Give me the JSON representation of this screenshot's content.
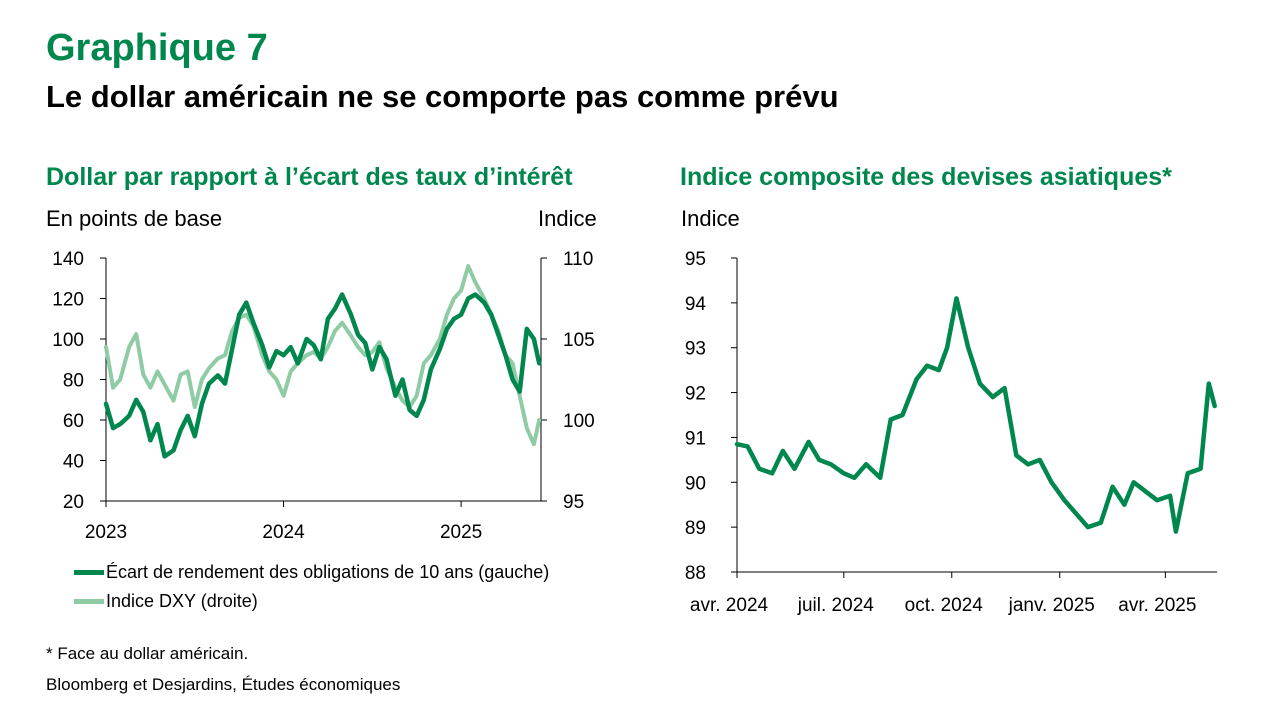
{
  "header": {
    "title": "Graphique 7",
    "subtitle": "Le dollar américain ne se comporte pas comme prévu"
  },
  "left_panel": {
    "title": "Dollar par rapport à l’écart des taux d’intérêt",
    "unit_left": "En points de base",
    "unit_right": "Indice"
  },
  "right_panel": {
    "title": "Indice composite des devises asiatiques*",
    "unit": "Indice"
  },
  "legend": {
    "items": [
      {
        "label": "Écart de rendement des obligations de 10 ans (gauche)",
        "color": "#00874E"
      },
      {
        "label": "Indice DXY (droite)",
        "color": "#8FCBA5"
      }
    ]
  },
  "footnote": "* Face au dollar américain.",
  "source": "Bloomberg et Desjardins, Études économiques",
  "chart_data": [
    {
      "type": "line",
      "title": "Dollar par rapport à l’écart des taux d’intérêt",
      "x_unit": "year (decimal)",
      "xlim": [
        2023.0,
        2025.45
      ],
      "x_ticks": [
        2023,
        2024,
        2025
      ],
      "x_tick_labels": [
        "2023",
        "2024",
        "2025"
      ],
      "y_left": {
        "label": "En points de base",
        "lim": [
          20,
          140
        ],
        "ticks": [
          20,
          40,
          60,
          80,
          100,
          120,
          140
        ]
      },
      "y_right": {
        "label": "Indice",
        "lim": [
          95,
          110
        ],
        "ticks": [
          95,
          100,
          105,
          110
        ]
      },
      "grid": false,
      "legend_position": "bottom-left",
      "series": [
        {
          "name": "Écart de rendement des obligations de 10 ans (gauche)",
          "axis": "left",
          "color": "#00874E",
          "x": [
            2023.0,
            2023.04,
            2023.08,
            2023.13,
            2023.17,
            2023.21,
            2023.25,
            2023.29,
            2023.33,
            2023.38,
            2023.42,
            2023.46,
            2023.5,
            2023.54,
            2023.58,
            2023.63,
            2023.67,
            2023.71,
            2023.75,
            2023.79,
            2023.83,
            2023.88,
            2023.92,
            2023.96,
            2024.0,
            2024.04,
            2024.08,
            2024.13,
            2024.17,
            2024.21,
            2024.25,
            2024.29,
            2024.33,
            2024.38,
            2024.42,
            2024.46,
            2024.5,
            2024.54,
            2024.58,
            2024.63,
            2024.67,
            2024.71,
            2024.75,
            2024.79,
            2024.83,
            2024.88,
            2024.92,
            2024.96,
            2025.0,
            2025.04,
            2025.08,
            2025.13,
            2025.17,
            2025.21,
            2025.25,
            2025.29,
            2025.33,
            2025.37,
            2025.41,
            2025.44
          ],
          "values": [
            68,
            56,
            58,
            62,
            70,
            64,
            50,
            58,
            42,
            45,
            55,
            62,
            52,
            68,
            78,
            82,
            78,
            95,
            112,
            118,
            108,
            97,
            86,
            94,
            92,
            96,
            88,
            100,
            97,
            90,
            110,
            115,
            122,
            112,
            102,
            98,
            85,
            96,
            90,
            72,
            80,
            65,
            62,
            70,
            85,
            95,
            105,
            110,
            112,
            120,
            122,
            118,
            112,
            102,
            92,
            80,
            74,
            105,
            100,
            88
          ]
        },
        {
          "name": "Indice DXY (droite)",
          "axis": "right",
          "color": "#8FCBA5",
          "x": [
            2023.0,
            2023.04,
            2023.08,
            2023.13,
            2023.17,
            2023.21,
            2023.25,
            2023.29,
            2023.33,
            2023.38,
            2023.42,
            2023.46,
            2023.5,
            2023.54,
            2023.58,
            2023.63,
            2023.67,
            2023.71,
            2023.75,
            2023.79,
            2023.83,
            2023.88,
            2023.92,
            2023.96,
            2024.0,
            2024.04,
            2024.08,
            2024.13,
            2024.17,
            2024.21,
            2024.25,
            2024.29,
            2024.33,
            2024.38,
            2024.42,
            2024.46,
            2024.5,
            2024.54,
            2024.58,
            2024.63,
            2024.67,
            2024.71,
            2024.75,
            2024.79,
            2024.83,
            2024.88,
            2024.92,
            2024.96,
            2025.0,
            2025.04,
            2025.08,
            2025.13,
            2025.17,
            2025.21,
            2025.25,
            2025.29,
            2025.33,
            2025.37,
            2025.41,
            2025.44
          ],
          "values": [
            104.5,
            102.0,
            102.5,
            104.5,
            105.3,
            102.8,
            102.0,
            103.0,
            102.2,
            101.2,
            102.8,
            103.0,
            100.8,
            102.5,
            103.2,
            103.8,
            104.0,
            105.5,
            106.3,
            106.5,
            105.8,
            104.0,
            103.0,
            102.5,
            101.5,
            103.0,
            103.5,
            104.0,
            104.2,
            103.8,
            104.5,
            105.5,
            106.0,
            105.2,
            104.5,
            104.0,
            104.2,
            104.8,
            103.2,
            102.0,
            101.2,
            100.8,
            101.5,
            103.5,
            104.0,
            105.0,
            106.5,
            107.5,
            108.0,
            109.5,
            108.5,
            107.5,
            106.5,
            105.5,
            104.0,
            103.5,
            101.5,
            99.5,
            98.5,
            100.0
          ]
        }
      ]
    },
    {
      "type": "line",
      "title": "Indice composite des devises asiatiques*",
      "x_unit": "date",
      "xlim": [
        "2024-04-01",
        "2025-05-15"
      ],
      "x_ticks": [
        "2024-04-01",
        "2024-07-01",
        "2024-10-01",
        "2025-01-01",
        "2025-04-01"
      ],
      "x_tick_labels": [
        "avr. 2024",
        "juil. 2024",
        "oct. 2024",
        "janv. 2025",
        "avr. 2025"
      ],
      "y_label": "Indice",
      "ylim": [
        88,
        95
      ],
      "y_ticks": [
        88,
        89,
        90,
        91,
        92,
        93,
        94,
        95
      ],
      "grid": false,
      "series": [
        {
          "color": "#00874E",
          "x": [
            "2024-04-01",
            "2024-04-10",
            "2024-04-20",
            "2024-05-01",
            "2024-05-10",
            "2024-05-20",
            "2024-06-01",
            "2024-06-10",
            "2024-06-20",
            "2024-07-01",
            "2024-07-10",
            "2024-07-20",
            "2024-08-01",
            "2024-08-10",
            "2024-08-20",
            "2024-09-01",
            "2024-09-10",
            "2024-09-20",
            "2024-09-27",
            "2024-10-05",
            "2024-10-15",
            "2024-10-25",
            "2024-11-05",
            "2024-11-15",
            "2024-11-25",
            "2024-12-05",
            "2024-12-15",
            "2024-12-25",
            "2025-01-05",
            "2025-01-15",
            "2025-01-25",
            "2025-02-05",
            "2025-02-15",
            "2025-02-25",
            "2025-03-05",
            "2025-03-15",
            "2025-03-25",
            "2025-04-05",
            "2025-04-10",
            "2025-04-20",
            "2025-05-01",
            "2025-05-08",
            "2025-05-13"
          ],
          "values": [
            90.85,
            90.8,
            90.3,
            90.2,
            90.7,
            90.3,
            90.9,
            90.5,
            90.4,
            90.2,
            90.1,
            90.4,
            90.1,
            91.4,
            91.5,
            92.3,
            92.6,
            92.5,
            93.0,
            94.1,
            93.0,
            92.2,
            91.9,
            92.1,
            90.6,
            90.4,
            90.5,
            90.0,
            89.6,
            89.3,
            89.0,
            89.1,
            89.9,
            89.5,
            90.0,
            89.8,
            89.6,
            89.7,
            88.9,
            90.2,
            90.3,
            92.2,
            91.7
          ]
        }
      ]
    }
  ]
}
